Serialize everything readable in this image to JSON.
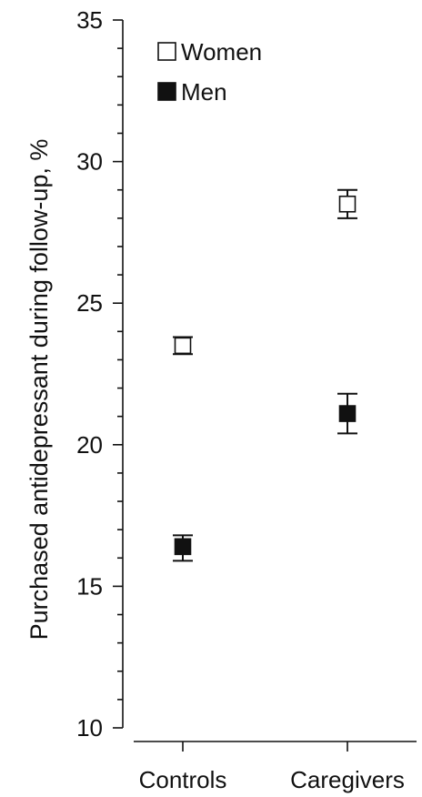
{
  "chart_data": {
    "type": "scatter",
    "title": "",
    "ylabel": "Purchased antidepressant during follow-up, %",
    "xlabel": "",
    "categories": [
      "Controls",
      "Caregivers"
    ],
    "ylim": [
      10,
      35
    ],
    "y_major_ticks": [
      10,
      15,
      20,
      25,
      30,
      35
    ],
    "y_minor_step": 1,
    "legend_position": "top-left",
    "grid": false,
    "series": [
      {
        "name": "Women",
        "marker": "open-square",
        "color": "#111111",
        "values": [
          23.5,
          28.5
        ],
        "error_low": [
          23.2,
          28.0
        ],
        "error_high": [
          23.8,
          29.0
        ]
      },
      {
        "name": "Men",
        "marker": "filled-square",
        "color": "#111111",
        "values": [
          16.4,
          21.1
        ],
        "error_low": [
          15.9,
          20.4
        ],
        "error_high": [
          16.8,
          21.8
        ]
      }
    ]
  }
}
